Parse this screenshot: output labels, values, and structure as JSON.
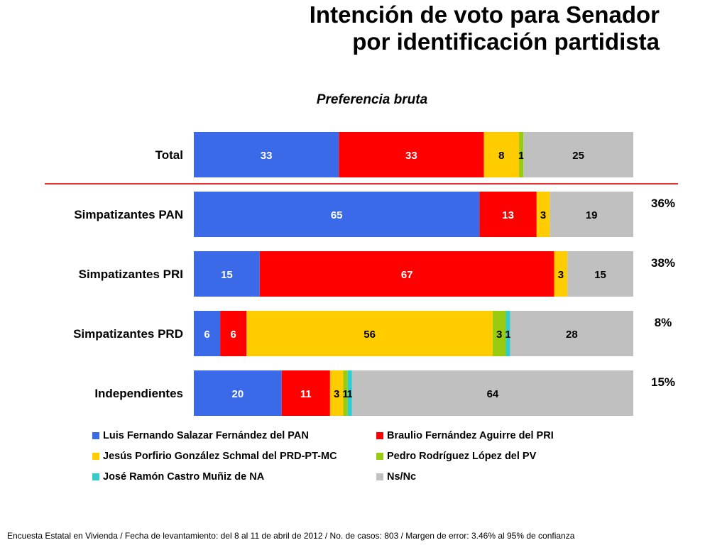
{
  "title_line1": "Intención de voto para Senador",
  "title_line2": "por identificación partidista",
  "footnote": "Encuesta Estatal en Vivienda / Fecha de levantamiento: del  8 al 11 de abril de 2012 / No. de casos: 803 / Margen de error: 3.46% al 95% de confianza",
  "chart_data": {
    "type": "bar",
    "orientation": "horizontal-stacked-100",
    "title": "Preferencia bruta",
    "xlabel": "",
    "ylabel": "",
    "xlim": [
      0,
      100
    ],
    "grid": false,
    "legend_position": "bottom",
    "categories": [
      "Total",
      "Simpatizantes PAN",
      "Simpatizantes PRI",
      "Simpatizantes PRD",
      "Independientes"
    ],
    "shares": [
      "",
      "36%",
      "38%",
      "8%",
      "15%"
    ],
    "series": [
      {
        "name": "Luis Fernando Salazar Fernández del PAN",
        "color": "#3a6ae8",
        "values": [
          33,
          65,
          15,
          6,
          20
        ]
      },
      {
        "name": "Braulio Fernández Aguirre del PRI",
        "color": "#ff0000",
        "values": [
          33,
          13,
          67,
          6,
          11
        ]
      },
      {
        "name": "Jesús Porfirio González Schmal del PRD-PT-MC",
        "color": "#ffcc00",
        "values": [
          8,
          3,
          3,
          56,
          3
        ]
      },
      {
        "name": "Pedro Rodríguez López del PV",
        "color": "#99cc11",
        "values": [
          1,
          0,
          0,
          3,
          1
        ]
      },
      {
        "name": "José Ramón Castro Muñiz de NA",
        "color": "#33cccc",
        "values": [
          0,
          0,
          0,
          1,
          1
        ]
      },
      {
        "name": "Ns/Nc",
        "color": "#c0c0c0",
        "values": [
          25,
          19,
          15,
          28,
          64
        ]
      }
    ]
  }
}
